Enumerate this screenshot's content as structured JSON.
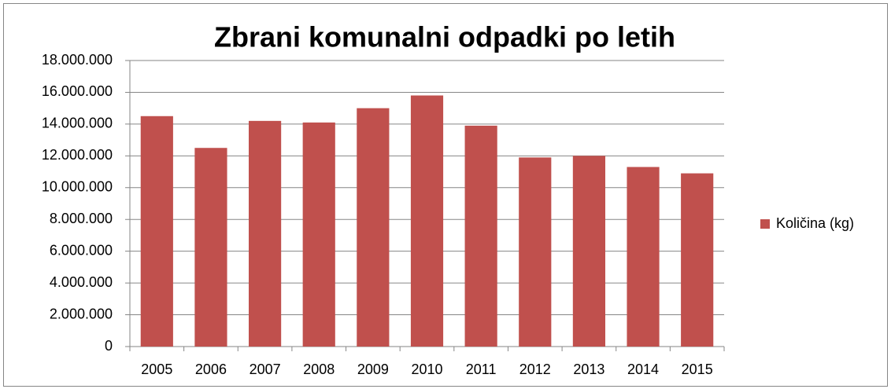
{
  "chart_data": {
    "type": "bar",
    "title": "Zbrani komunalni odpadki po letih",
    "categories": [
      "2005",
      "2006",
      "2007",
      "2008",
      "2009",
      "2010",
      "2011",
      "2012",
      "2013",
      "2014",
      "2015"
    ],
    "series": [
      {
        "name": "Količina (kg)",
        "color": "#c0504d",
        "values": [
          14500000,
          12500000,
          14200000,
          14100000,
          15000000,
          15800000,
          13900000,
          11900000,
          12000000,
          11300000,
          10900000
        ]
      }
    ],
    "ylim": [
      0,
      18000000
    ],
    "yticks": [
      0,
      {
        "value": 2000000,
        "label": "2.000.000"
      },
      {
        "value": 4000000,
        "label": "4.000.000"
      },
      {
        "value": 6000000,
        "label": "6.000.000"
      },
      {
        "value": 8000000,
        "label": "8.000.000"
      },
      {
        "value": 10000000,
        "label": "10.000.000"
      },
      {
        "value": 12000000,
        "label": "12.000.000"
      },
      {
        "value": 14000000,
        "label": "14.000.000"
      },
      {
        "value": 16000000,
        "label": "16.000.000"
      },
      {
        "value": 18000000,
        "label": "18.000.000"
      }
    ],
    "grid": true,
    "legend": "right"
  }
}
